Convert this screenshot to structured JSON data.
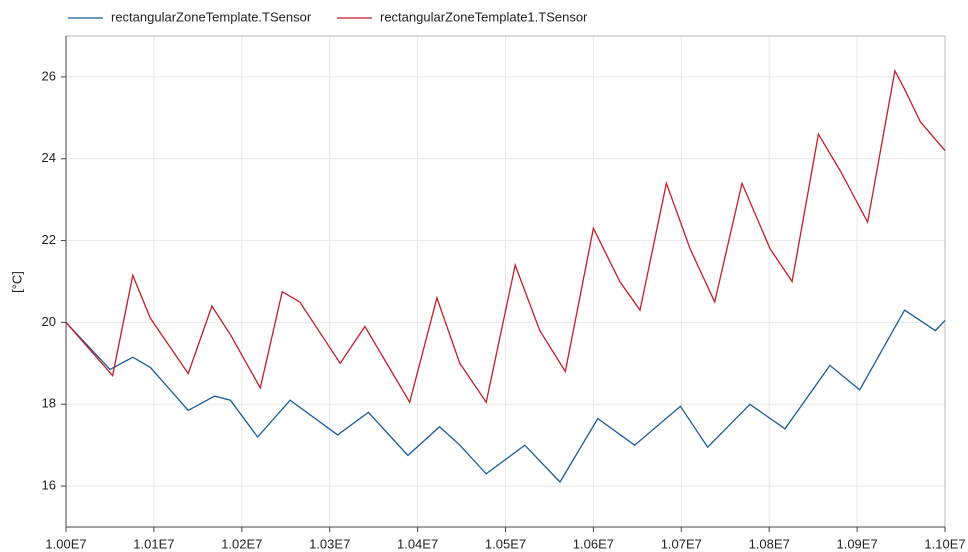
{
  "chart_data": {
    "type": "line",
    "y_label": "[°C]",
    "xlim": [
      10000000,
      11000000
    ],
    "xticks": [
      {
        "value": 10000000,
        "label": "1.00E7"
      },
      {
        "value": 10100000,
        "label": "1.01E7"
      },
      {
        "value": 10200000,
        "label": "1.02E7"
      },
      {
        "value": 10300000,
        "label": "1.03E7"
      },
      {
        "value": 10400000,
        "label": "1.04E7"
      },
      {
        "value": 10500000,
        "label": "1.05E7"
      },
      {
        "value": 10600000,
        "label": "1.06E7"
      },
      {
        "value": 10700000,
        "label": "1.07E7"
      },
      {
        "value": 10800000,
        "label": "1.08E7"
      },
      {
        "value": 10900000,
        "label": "1.09E7"
      },
      {
        "value": 11000000,
        "label": "1.10E7"
      }
    ],
    "ylim": [
      15,
      27
    ],
    "yticks": [
      16,
      18,
      20,
      22,
      24,
      26
    ],
    "grid": true,
    "legend": "top",
    "series": [
      {
        "name": "rectangularZoneTemplate.TSensor",
        "color": "#1a5c9e",
        "x": [
          10000000,
          10050000,
          10076000,
          10096000,
          10139000,
          10169000,
          10187000,
          10218000,
          10255000,
          10309000,
          10344000,
          10389000,
          10425000,
          10448000,
          10478000,
          10522000,
          10562000,
          10605000,
          10647000,
          10699000,
          10730000,
          10778000,
          10818000,
          10869000,
          10903000,
          10954000,
          10989000,
          11000000
        ],
        "values": [
          20.0,
          18.85,
          19.15,
          18.9,
          17.85,
          18.2,
          18.1,
          17.2,
          18.1,
          17.25,
          17.8,
          16.75,
          17.45,
          17.0,
          16.3,
          17.0,
          16.1,
          17.65,
          17.0,
          17.95,
          16.95,
          18.0,
          17.4,
          18.95,
          18.35,
          20.3,
          19.8,
          20.05
        ]
      },
      {
        "name": "rectangularZoneTemplate1.TSensor",
        "color": "#c41e2a",
        "x": [
          10000000,
          10053000,
          10076000,
          10096000,
          10139000,
          10166000,
          10187000,
          10221000,
          10246000,
          10266000,
          10312000,
          10340000,
          10391000,
          10422000,
          10448000,
          10478000,
          10511000,
          10539000,
          10568000,
          10600000,
          10630000,
          10653000,
          10683000,
          10710000,
          10738000,
          10769000,
          10801000,
          10826000,
          10856000,
          10881000,
          10912000,
          10943000,
          10954000,
          10972000,
          11000000
        ],
        "values": [
          20.0,
          18.7,
          21.15,
          20.1,
          18.75,
          20.4,
          19.7,
          18.4,
          20.75,
          20.5,
          19.0,
          19.9,
          18.05,
          20.6,
          19.0,
          18.05,
          21.4,
          19.8,
          18.8,
          22.3,
          21.0,
          20.3,
          23.4,
          21.8,
          20.5,
          23.4,
          21.8,
          21.0,
          24.6,
          23.7,
          22.45,
          26.15,
          25.7,
          24.9,
          24.2
        ]
      }
    ]
  }
}
